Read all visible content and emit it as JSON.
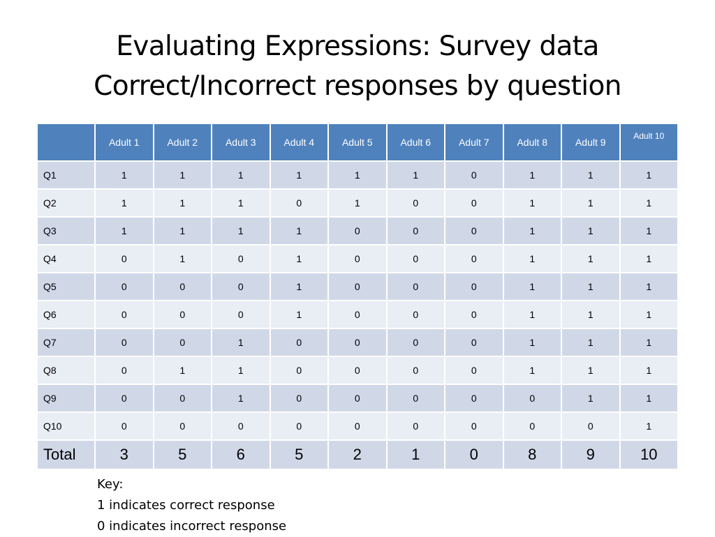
{
  "title": {
    "line1": "Evaluating Expressions: Survey data",
    "line2": "Correct/Incorrect responses by question"
  },
  "table": {
    "corner": "",
    "columns": [
      "Adult 1",
      "Adult 2",
      "Adult 3",
      "Adult 4",
      "Adult 5",
      "Adult 6",
      "Adult 7",
      "Adult 8",
      "Adult 9",
      "Adult 10"
    ],
    "rows": [
      {
        "label": "Q1",
        "values": [
          "1",
          "1",
          "1",
          "1",
          "1",
          "1",
          "0",
          "1",
          "1",
          "1"
        ]
      },
      {
        "label": "Q2",
        "values": [
          "1",
          "1",
          "1",
          "0",
          "1",
          "0",
          "0",
          "1",
          "1",
          "1"
        ]
      },
      {
        "label": "Q3",
        "values": [
          "1",
          "1",
          "1",
          "1",
          "0",
          "0",
          "0",
          "1",
          "1",
          "1"
        ]
      },
      {
        "label": "Q4",
        "values": [
          "0",
          "1",
          "0",
          "1",
          "0",
          "0",
          "0",
          "1",
          "1",
          "1"
        ]
      },
      {
        "label": "Q5",
        "values": [
          "0",
          "0",
          "0",
          "1",
          "0",
          "0",
          "0",
          "1",
          "1",
          "1"
        ]
      },
      {
        "label": "Q6",
        "values": [
          "0",
          "0",
          "0",
          "1",
          "0",
          "0",
          "0",
          "1",
          "1",
          "1"
        ]
      },
      {
        "label": "Q7",
        "values": [
          "0",
          "0",
          "1",
          "0",
          "0",
          "0",
          "0",
          "1",
          "1",
          "1"
        ]
      },
      {
        "label": "Q8",
        "values": [
          "0",
          "1",
          "1",
          "0",
          "0",
          "0",
          "0",
          "1",
          "1",
          "1"
        ]
      },
      {
        "label": "Q9",
        "values": [
          "0",
          "0",
          "1",
          "0",
          "0",
          "0",
          "0",
          "0",
          "1",
          "1"
        ]
      },
      {
        "label": "Q10",
        "values": [
          "0",
          "0",
          "0",
          "0",
          "0",
          "0",
          "0",
          "0",
          "0",
          "1"
        ]
      }
    ],
    "total": {
      "label": "Total",
      "values": [
        "3",
        "5",
        "6",
        "5",
        "2",
        "1",
        "0",
        "8",
        "9",
        "10"
      ]
    }
  },
  "key": {
    "heading": "Key:",
    "line1": "1 indicates correct response",
    "line2": "0 indicates incorrect response"
  },
  "colors": {
    "header": "#4f81bd",
    "row_dark": "#d0d8e8",
    "row_light": "#e9edf4"
  }
}
